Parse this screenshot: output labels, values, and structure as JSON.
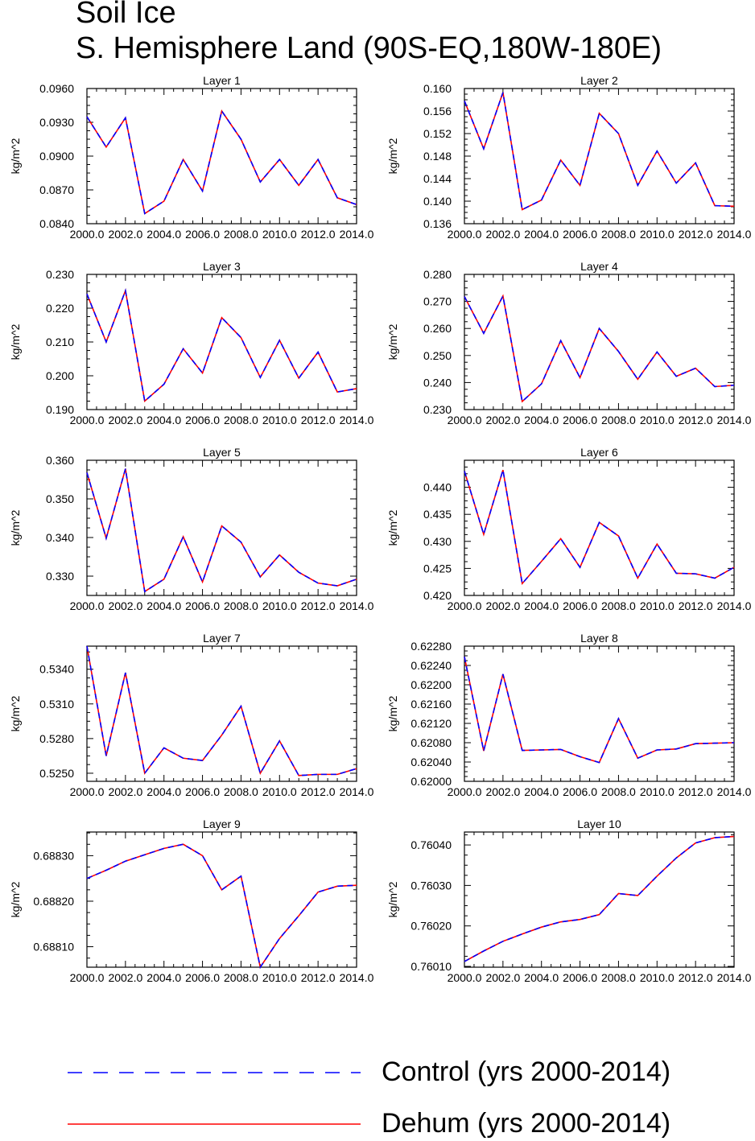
{
  "page": {
    "title_line1": "Soil Ice",
    "title_line2": "S. Hemisphere Land (90S-EQ,180W-180E)"
  },
  "colors": {
    "control": "#0000ff",
    "dehum": "#ff0000",
    "axis": "#000000"
  },
  "legend": {
    "control_label": "Control (yrs 2000-2014)",
    "dehum_label": "Dehum (yrs 2000-2014)"
  },
  "chart_data": [
    {
      "type": "line",
      "title": "Layer 1",
      "ylabel": "kg/m^2",
      "xlim": [
        2000,
        2014
      ],
      "xticks": [
        2000,
        2002,
        2004,
        2006,
        2008,
        2010,
        2012,
        2014
      ],
      "xtick_labels": [
        "2000.0",
        "2002.0",
        "2004.0",
        "2006.0",
        "2008.0",
        "2010.0",
        "2012.0",
        "2014.0"
      ],
      "ylim": [
        0.084,
        0.096
      ],
      "yticks": [
        0.084,
        0.087,
        0.09,
        0.093,
        0.096
      ],
      "ytick_labels": [
        "0.0840",
        "0.0870",
        "0.0900",
        "0.0930",
        "0.0960"
      ],
      "x": [
        2000,
        2001,
        2002,
        2003,
        2004,
        2005,
        2006,
        2007,
        2008,
        2009,
        2010,
        2011,
        2012,
        2013,
        2014
      ],
      "series": [
        {
          "name": "Control (yrs 2000-2014)",
          "style": "dashed",
          "values": [
            0.0935,
            0.0908,
            0.0934,
            0.0849,
            0.086,
            0.0897,
            0.0869,
            0.094,
            0.0915,
            0.0877,
            0.0897,
            0.0874,
            0.0897,
            0.0863,
            0.0857
          ]
        },
        {
          "name": "Dehum (yrs 2000-2014)",
          "style": "solid",
          "values": [
            0.0935,
            0.0908,
            0.0934,
            0.0849,
            0.086,
            0.0897,
            0.0869,
            0.094,
            0.0915,
            0.0877,
            0.0897,
            0.0874,
            0.0897,
            0.0863,
            0.0857
          ]
        }
      ]
    },
    {
      "type": "line",
      "title": "Layer 2",
      "ylabel": "kg/m^2",
      "xlim": [
        2000,
        2014
      ],
      "xticks": [
        2000,
        2002,
        2004,
        2006,
        2008,
        2010,
        2012,
        2014
      ],
      "xtick_labels": [
        "2000.0",
        "2002.0",
        "2004.0",
        "2006.0",
        "2008.0",
        "2010.0",
        "2012.0",
        "2014.0"
      ],
      "ylim": [
        0.136,
        0.16
      ],
      "yticks": [
        0.136,
        0.14,
        0.144,
        0.148,
        0.152,
        0.156,
        0.16
      ],
      "ytick_labels": [
        "0.136",
        "0.140",
        "0.144",
        "0.148",
        "0.152",
        "0.156",
        "0.160"
      ],
      "x": [
        2000,
        2001,
        2002,
        2003,
        2004,
        2005,
        2006,
        2007,
        2008,
        2009,
        2010,
        2011,
        2012,
        2013,
        2014
      ],
      "series": [
        {
          "name": "Control (yrs 2000-2014)",
          "style": "dashed",
          "values": [
            0.1578,
            0.1493,
            0.1593,
            0.1385,
            0.1402,
            0.1473,
            0.1428,
            0.1556,
            0.152,
            0.1428,
            0.1489,
            0.1432,
            0.1468,
            0.1392,
            0.1391
          ]
        },
        {
          "name": "Dehum (yrs 2000-2014)",
          "style": "solid",
          "values": [
            0.1578,
            0.1493,
            0.1593,
            0.1385,
            0.1402,
            0.1473,
            0.1428,
            0.1556,
            0.152,
            0.1428,
            0.1489,
            0.1432,
            0.1468,
            0.1392,
            0.1391
          ]
        }
      ]
    },
    {
      "type": "line",
      "title": "Layer 3",
      "ylabel": "kg/m^2",
      "xlim": [
        2000,
        2014
      ],
      "xticks": [
        2000,
        2002,
        2004,
        2006,
        2008,
        2010,
        2012,
        2014
      ],
      "xtick_labels": [
        "2000.0",
        "2002.0",
        "2004.0",
        "2006.0",
        "2008.0",
        "2010.0",
        "2012.0",
        "2014.0"
      ],
      "ylim": [
        0.19,
        0.23
      ],
      "yticks": [
        0.19,
        0.2,
        0.21,
        0.22,
        0.23
      ],
      "ytick_labels": [
        "0.190",
        "0.200",
        "0.210",
        "0.220",
        "0.230"
      ],
      "x": [
        2000,
        2001,
        2002,
        2003,
        2004,
        2005,
        2006,
        2007,
        2008,
        2009,
        2010,
        2011,
        2012,
        2013,
        2014
      ],
      "series": [
        {
          "name": "Control (yrs 2000-2014)",
          "style": "dashed",
          "values": [
            0.2242,
            0.21,
            0.2252,
            0.1925,
            0.1975,
            0.208,
            0.2008,
            0.2172,
            0.2113,
            0.1995,
            0.2105,
            0.1993,
            0.207,
            0.1952,
            0.1962
          ]
        },
        {
          "name": "Dehum (yrs 2000-2014)",
          "style": "solid",
          "values": [
            0.2242,
            0.21,
            0.2252,
            0.1925,
            0.1975,
            0.208,
            0.2008,
            0.2172,
            0.2113,
            0.1995,
            0.2105,
            0.1993,
            0.207,
            0.1952,
            0.1962
          ]
        }
      ]
    },
    {
      "type": "line",
      "title": "Layer 4",
      "ylabel": "kg/m^2",
      "xlim": [
        2000,
        2014
      ],
      "xticks": [
        2000,
        2002,
        2004,
        2006,
        2008,
        2010,
        2012,
        2014
      ],
      "xtick_labels": [
        "2000.0",
        "2002.0",
        "2004.0",
        "2006.0",
        "2008.0",
        "2010.0",
        "2012.0",
        "2014.0"
      ],
      "ylim": [
        0.23,
        0.28
      ],
      "yticks": [
        0.23,
        0.24,
        0.25,
        0.26,
        0.27,
        0.28
      ],
      "ytick_labels": [
        "0.230",
        "0.240",
        "0.250",
        "0.260",
        "0.270",
        "0.280"
      ],
      "x": [
        2000,
        2001,
        2002,
        2003,
        2004,
        2005,
        2006,
        2007,
        2008,
        2009,
        2010,
        2011,
        2012,
        2013,
        2014
      ],
      "series": [
        {
          "name": "Control (yrs 2000-2014)",
          "style": "dashed",
          "values": [
            0.2718,
            0.2582,
            0.272,
            0.233,
            0.2395,
            0.2555,
            0.2418,
            0.26,
            0.2515,
            0.2412,
            0.2513,
            0.2423,
            0.2453,
            0.2385,
            0.239
          ]
        },
        {
          "name": "Dehum (yrs 2000-2014)",
          "style": "solid",
          "values": [
            0.2718,
            0.2582,
            0.272,
            0.233,
            0.2395,
            0.2555,
            0.2418,
            0.26,
            0.2515,
            0.2412,
            0.2513,
            0.2423,
            0.2453,
            0.2385,
            0.239
          ]
        }
      ]
    },
    {
      "type": "line",
      "title": "Layer 5",
      "ylabel": "kg/m^2",
      "xlim": [
        2000,
        2014
      ],
      "xticks": [
        2000,
        2002,
        2004,
        2006,
        2008,
        2010,
        2012,
        2014
      ],
      "xtick_labels": [
        "2000.0",
        "2002.0",
        "2004.0",
        "2006.0",
        "2008.0",
        "2010.0",
        "2012.0",
        "2014.0"
      ],
      "ylim": [
        0.325,
        0.36
      ],
      "yticks": [
        0.33,
        0.34,
        0.35,
        0.36
      ],
      "ytick_labels": [
        "0.330",
        "0.340",
        "0.350",
        "0.360"
      ],
      "x": [
        2000,
        2001,
        2002,
        2003,
        2004,
        2005,
        2006,
        2007,
        2008,
        2009,
        2010,
        2011,
        2012,
        2013,
        2014
      ],
      "series": [
        {
          "name": "Control (yrs 2000-2014)",
          "style": "dashed",
          "values": [
            0.3568,
            0.3398,
            0.3578,
            0.326,
            0.3292,
            0.3402,
            0.3285,
            0.343,
            0.3388,
            0.3298,
            0.3355,
            0.331,
            0.3282,
            0.3275,
            0.3292
          ]
        },
        {
          "name": "Dehum (yrs 2000-2014)",
          "style": "solid",
          "values": [
            0.3568,
            0.3398,
            0.3578,
            0.326,
            0.3292,
            0.3402,
            0.3285,
            0.343,
            0.3388,
            0.3298,
            0.3355,
            0.331,
            0.3282,
            0.3275,
            0.3292
          ]
        }
      ]
    },
    {
      "type": "line",
      "title": "Layer 6",
      "ylabel": "kg/m^2",
      "xlim": [
        2000,
        2014
      ],
      "xticks": [
        2000,
        2002,
        2004,
        2006,
        2008,
        2010,
        2012,
        2014
      ],
      "xtick_labels": [
        "2000.0",
        "2002.0",
        "2004.0",
        "2006.0",
        "2008.0",
        "2010.0",
        "2012.0",
        "2014.0"
      ],
      "ylim": [
        0.42,
        0.445
      ],
      "yticks": [
        0.42,
        0.425,
        0.43,
        0.435,
        0.44
      ],
      "ytick_labels": [
        "0.420",
        "0.425",
        "0.430",
        "0.435",
        "0.440"
      ],
      "x": [
        2000,
        2001,
        2002,
        2003,
        2004,
        2005,
        2006,
        2007,
        2008,
        2009,
        2010,
        2011,
        2012,
        2013,
        2014
      ],
      "series": [
        {
          "name": "Control (yrs 2000-2014)",
          "style": "dashed",
          "values": [
            0.443,
            0.4313,
            0.4432,
            0.4222,
            0.4263,
            0.4305,
            0.4252,
            0.4335,
            0.431,
            0.4232,
            0.4295,
            0.4241,
            0.424,
            0.4232,
            0.4252
          ]
        },
        {
          "name": "Dehum (yrs 2000-2014)",
          "style": "solid",
          "values": [
            0.443,
            0.4313,
            0.4432,
            0.4222,
            0.4263,
            0.4305,
            0.4252,
            0.4335,
            0.431,
            0.4232,
            0.4295,
            0.4241,
            0.424,
            0.4232,
            0.4252
          ]
        }
      ]
    },
    {
      "type": "line",
      "title": "Layer 7",
      "ylabel": "kg/m^2",
      "xlim": [
        2000,
        2014
      ],
      "xticks": [
        2000,
        2002,
        2004,
        2006,
        2008,
        2010,
        2012,
        2014
      ],
      "xtick_labels": [
        "2000.0",
        "2002.0",
        "2004.0",
        "2006.0",
        "2008.0",
        "2010.0",
        "2012.0",
        "2014.0"
      ],
      "ylim": [
        0.5243,
        0.536
      ],
      "yticks": [
        0.525,
        0.528,
        0.531,
        0.534
      ],
      "ytick_labels": [
        "0.5250",
        "0.5280",
        "0.5310",
        "0.5340"
      ],
      "x": [
        2000,
        2001,
        2002,
        2003,
        2004,
        2005,
        2006,
        2007,
        2008,
        2009,
        2010,
        2011,
        2012,
        2013,
        2014
      ],
      "series": [
        {
          "name": "Control (yrs 2000-2014)",
          "style": "dashed",
          "values": [
            0.536,
            0.5265,
            0.5337,
            0.525,
            0.5272,
            0.5263,
            0.5261,
            0.5283,
            0.5308,
            0.525,
            0.5278,
            0.5248,
            0.5249,
            0.5249,
            0.5254
          ]
        },
        {
          "name": "Dehum (yrs 2000-2014)",
          "style": "solid",
          "values": [
            0.536,
            0.5265,
            0.5337,
            0.525,
            0.5272,
            0.5263,
            0.5261,
            0.5283,
            0.5308,
            0.525,
            0.5278,
            0.5248,
            0.5249,
            0.5249,
            0.5254
          ]
        }
      ]
    },
    {
      "type": "line",
      "title": "Layer 8",
      "ylabel": "kg/m^2",
      "xlim": [
        2000,
        2014
      ],
      "xticks": [
        2000,
        2002,
        2004,
        2006,
        2008,
        2010,
        2012,
        2014
      ],
      "xtick_labels": [
        "2000.0",
        "2002.0",
        "2004.0",
        "2006.0",
        "2008.0",
        "2010.0",
        "2012.0",
        "2014.0"
      ],
      "ylim": [
        0.62,
        0.6228
      ],
      "yticks": [
        0.62,
        0.6204,
        0.6208,
        0.6212,
        0.6216,
        0.622,
        0.6224,
        0.6228
      ],
      "ytick_labels": [
        "0.62000",
        "0.62040",
        "0.62080",
        "0.62120",
        "0.62160",
        "0.62200",
        "0.62240",
        "0.62280"
      ],
      "x": [
        2000,
        2001,
        2002,
        2003,
        2004,
        2005,
        2006,
        2007,
        2008,
        2009,
        2010,
        2011,
        2012,
        2013,
        2014
      ],
      "series": [
        {
          "name": "Control (yrs 2000-2014)",
          "style": "dashed",
          "values": [
            0.62258,
            0.62063,
            0.62222,
            0.62064,
            0.62065,
            0.62066,
            0.62051,
            0.62039,
            0.6213,
            0.62048,
            0.62065,
            0.62067,
            0.62078,
            0.62079,
            0.6208
          ]
        },
        {
          "name": "Dehum (yrs 2000-2014)",
          "style": "solid",
          "values": [
            0.62258,
            0.62063,
            0.62222,
            0.62064,
            0.62065,
            0.62066,
            0.62051,
            0.62039,
            0.6213,
            0.62048,
            0.62065,
            0.62067,
            0.62078,
            0.62079,
            0.6208
          ]
        }
      ]
    },
    {
      "type": "line",
      "title": "Layer 9",
      "ylabel": "kg/m^2",
      "xlim": [
        2000,
        2014
      ],
      "xticks": [
        2000,
        2002,
        2004,
        2006,
        2008,
        2010,
        2012,
        2014
      ],
      "xtick_labels": [
        "2000.0",
        "2002.0",
        "2004.0",
        "2006.0",
        "2008.0",
        "2010.0",
        "2012.0",
        "2014.0"
      ],
      "ylim": [
        0.688055,
        0.688352
      ],
      "yticks": [
        0.6881,
        0.6882,
        0.6883
      ],
      "ytick_labels": [
        "0.68810",
        "0.68820",
        "0.68830"
      ],
      "x": [
        2000,
        2001,
        2002,
        2003,
        2004,
        2005,
        2006,
        2007,
        2008,
        2009,
        2010,
        2011,
        2012,
        2013,
        2014
      ],
      "series": [
        {
          "name": "Control (yrs 2000-2014)",
          "style": "dashed",
          "values": [
            0.68825,
            0.688268,
            0.688288,
            0.688302,
            0.688316,
            0.688325,
            0.6883,
            0.688225,
            0.688255,
            0.688055,
            0.688118,
            0.688168,
            0.68822,
            0.688233,
            0.688235
          ]
        },
        {
          "name": "Dehum (yrs 2000-2014)",
          "style": "solid",
          "values": [
            0.68825,
            0.688268,
            0.688288,
            0.688302,
            0.688316,
            0.688325,
            0.6883,
            0.688225,
            0.688255,
            0.688055,
            0.688118,
            0.688168,
            0.68822,
            0.688233,
            0.688235
          ]
        }
      ]
    },
    {
      "type": "line",
      "title": "Layer 10",
      "ylabel": "kg/m^2",
      "xlim": [
        2000,
        2014
      ],
      "xticks": [
        2000,
        2002,
        2004,
        2006,
        2008,
        2010,
        2012,
        2014
      ],
      "xtick_labels": [
        "2000.0",
        "2002.0",
        "2004.0",
        "2006.0",
        "2008.0",
        "2010.0",
        "2012.0",
        "2014.0"
      ],
      "ylim": [
        0.760098,
        0.760432
      ],
      "yticks": [
        0.7601,
        0.7602,
        0.7603,
        0.7604
      ],
      "ytick_labels": [
        "0.76010",
        "0.76020",
        "0.76030",
        "0.76040"
      ],
      "x": [
        2000,
        2001,
        2002,
        2003,
        2004,
        2005,
        2006,
        2007,
        2008,
        2009,
        2010,
        2011,
        2012,
        2013,
        2014
      ],
      "series": [
        {
          "name": "Control (yrs 2000-2014)",
          "style": "dashed",
          "values": [
            0.760112,
            0.760138,
            0.760162,
            0.76018,
            0.760197,
            0.76021,
            0.760216,
            0.760228,
            0.76028,
            0.760275,
            0.760323,
            0.760368,
            0.760405,
            0.760418,
            0.760421
          ]
        },
        {
          "name": "Dehum (yrs 2000-2014)",
          "style": "solid",
          "values": [
            0.760112,
            0.760138,
            0.760162,
            0.76018,
            0.760197,
            0.76021,
            0.760216,
            0.760228,
            0.76028,
            0.760275,
            0.760323,
            0.760368,
            0.760405,
            0.760418,
            0.760421
          ]
        }
      ]
    }
  ]
}
